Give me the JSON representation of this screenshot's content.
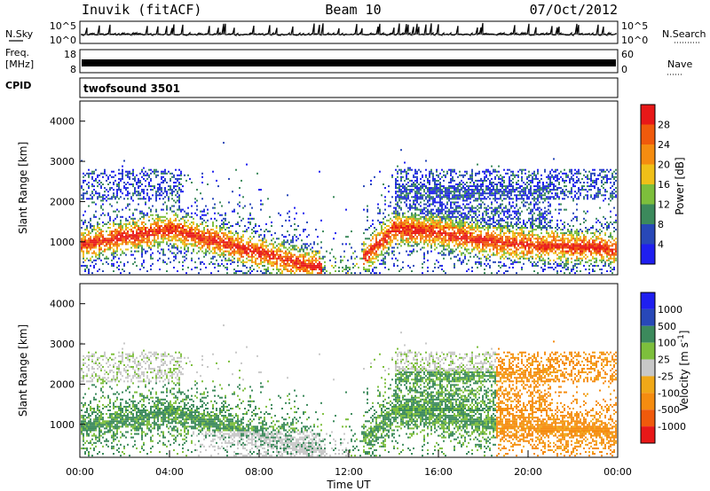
{
  "header": {
    "station": "Inuvik (fitACF)",
    "beam": "Beam 10",
    "date": "07/Oct/2012"
  },
  "left_labels": {
    "nsky": "N.Sky",
    "freq": "Freq.",
    "freq_unit": "[MHz]",
    "cpid": "CPID"
  },
  "right_labels": {
    "nsearch": "N.Search",
    "nave": "Nave"
  },
  "top_panels": {
    "nsky_ticks": [
      "10^5",
      "10^0"
    ],
    "nsearch_ticks": [
      "10^5",
      "10^0"
    ],
    "freq_ticks": [
      "18",
      "8"
    ],
    "nave_ticks": [
      "60",
      "0"
    ]
  },
  "cpid_text": "twofsound 3501",
  "time_ticks": [
    "00:00",
    "04:00",
    "08:00",
    "12:00",
    "16:00",
    "20:00",
    "00:00"
  ],
  "time_label": "Time UT",
  "colors": {
    "power": [
      "#1f1ff0",
      "#2848b8",
      "#3c8a5c",
      "#7dbf3c",
      "#f0c018",
      "#f58c10",
      "#f05a0c",
      "#e81818"
    ],
    "velocity": [
      "#e81818",
      "#f05a0c",
      "#f58c10",
      "#f0a818",
      "#c8c8c8",
      "#7dbf3c",
      "#3c8a5c",
      "#2848b8",
      "#1f1ff0"
    ]
  },
  "chart_data": [
    {
      "type": "heatmap",
      "title": "",
      "xlabel": "",
      "ylabel": "Slant Range [km]",
      "xlim": [
        "00:00",
        "24:00"
      ],
      "ylim": [
        180,
        4500
      ],
      "yticks": [
        1000,
        2000,
        3000,
        4000
      ],
      "colorbar": {
        "label": "Power [dB]",
        "ticks": [
          4,
          8,
          12,
          16,
          20,
          24,
          28
        ]
      },
      "description_series": [
        {
          "name": "backscatter band",
          "x_hours": [
            0,
            2,
            4,
            6,
            8,
            10,
            12,
            14,
            16,
            18,
            20,
            22,
            24
          ],
          "slant_range_km": [
            900,
            1100,
            1300,
            1000,
            700,
            400,
            250,
            1300,
            1200,
            1000,
            900,
            850,
            800
          ]
        }
      ]
    },
    {
      "type": "heatmap",
      "title": "",
      "xlabel": "Time UT",
      "ylabel": "Slant Range [km]",
      "xlim": [
        "00:00",
        "24:00"
      ],
      "ylim": [
        180,
        4500
      ],
      "yticks": [
        1000,
        2000,
        3000,
        4000
      ],
      "colorbar": {
        "label": "Velocity [m s^-1]",
        "ticks": [
          1000,
          500,
          100,
          25,
          -25,
          -100,
          -500,
          -1000
        ]
      }
    }
  ]
}
